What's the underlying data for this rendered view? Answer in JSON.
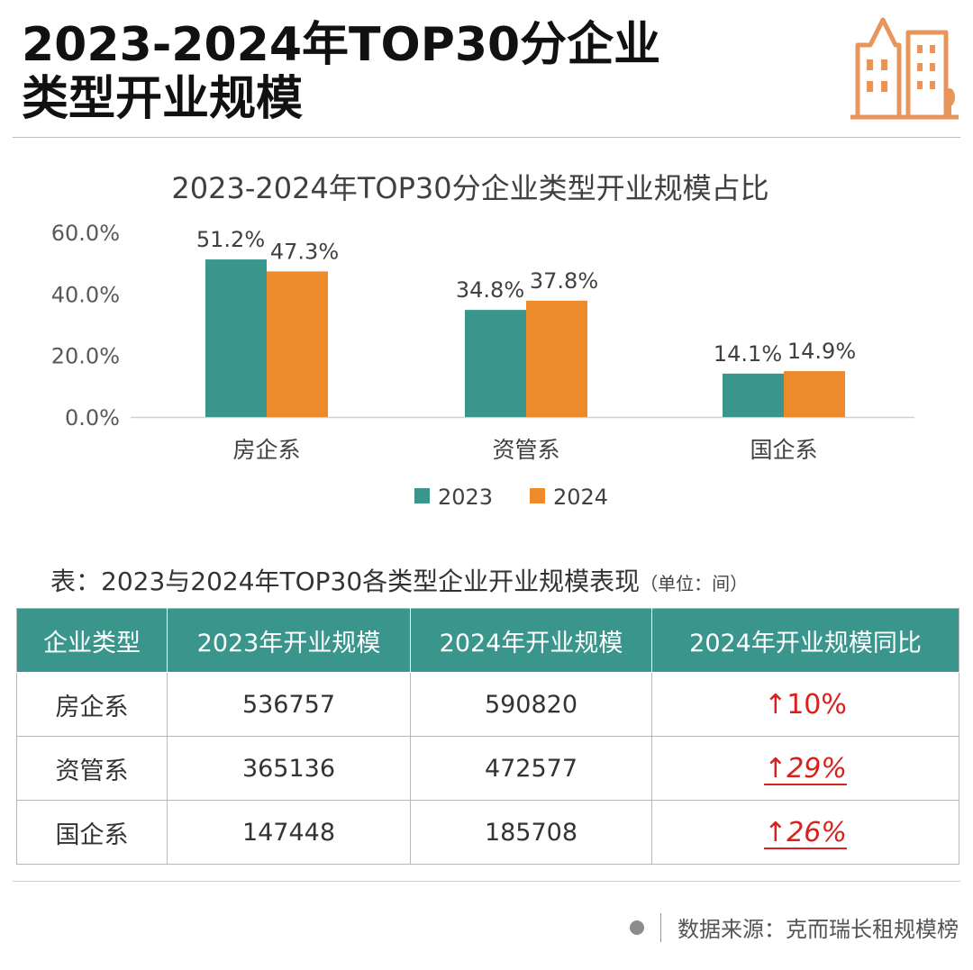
{
  "header": {
    "title_line1": "2023-2024年TOP30分企业",
    "title_line2": "类型开业规模"
  },
  "colors": {
    "y2023": "#3a968c",
    "y2024": "#ec8a2c",
    "logo": "#e7955a",
    "header_bg": "#3a968c",
    "up_red": "#d9201c"
  },
  "chart_data": {
    "type": "bar",
    "title": "2023-2024年TOP30分企业类型开业规模占比",
    "categories": [
      "房企系",
      "资管系",
      "国企系"
    ],
    "series": [
      {
        "name": "2023",
        "values": [
          51.2,
          34.8,
          14.1
        ],
        "labels": [
          "51.2%",
          "34.8%",
          "14.1%"
        ]
      },
      {
        "name": "2024",
        "values": [
          47.3,
          37.8,
          14.9
        ],
        "labels": [
          "47.3%",
          "37.8%",
          "14.9%"
        ]
      }
    ],
    "ylim": [
      0,
      60
    ],
    "yticks": [
      "0.0%",
      "20.0%",
      "40.0%",
      "60.0%"
    ],
    "ytick_values": [
      0,
      20,
      40,
      60
    ],
    "legend_position": "bottom",
    "grid": false
  },
  "table": {
    "caption": "表：2023与2024年TOP30各类型企业开业规模表现",
    "unit": "（单位：间）",
    "headers": [
      "企业类型",
      "2023年开业规模",
      "2024年开业规模",
      "2024年开业规模同比"
    ],
    "rows": [
      {
        "type": "房企系",
        "v2023": "536757",
        "v2024": "590820",
        "yoy": "↑10%"
      },
      {
        "type": "资管系",
        "v2023": "365136",
        "v2024": "472577",
        "yoy": "↑29%"
      },
      {
        "type": "国企系",
        "v2023": "147448",
        "v2024": "185708",
        "yoy": "↑26%"
      }
    ]
  },
  "footer": {
    "source": "数据来源：克而瑞长租规模榜"
  }
}
